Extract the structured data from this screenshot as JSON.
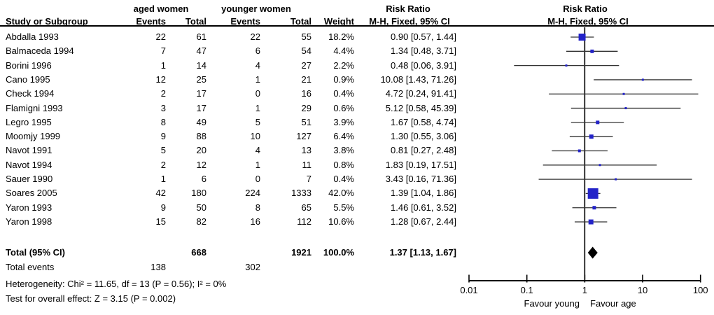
{
  "chart_data": {
    "type": "forest",
    "effect_measure": "Risk Ratio",
    "method": "M-H, Fixed, 95% CI",
    "groups": {
      "experimental": "aged women",
      "control": "younger women"
    },
    "columns": [
      "Study or Subgroup",
      "Events",
      "Total",
      "Events",
      "Total",
      "Weight"
    ],
    "studies": [
      {
        "name": "Abdalla 1993",
        "events1": 22,
        "total1": 61,
        "events2": 22,
        "total2": 55,
        "weight": "18.2%",
        "weight_value": 18.2,
        "rr": 0.9,
        "ci_low": 0.57,
        "ci_high": 1.44,
        "label": "0.90 [0.57, 1.44]"
      },
      {
        "name": "Balmaceda 1994",
        "events1": 7,
        "total1": 47,
        "events2": 6,
        "total2": 54,
        "weight": "4.4%",
        "weight_value": 4.4,
        "rr": 1.34,
        "ci_low": 0.48,
        "ci_high": 3.71,
        "label": "1.34 [0.48, 3.71]"
      },
      {
        "name": "Borini 1996",
        "events1": 1,
        "total1": 14,
        "events2": 4,
        "total2": 27,
        "weight": "2.2%",
        "weight_value": 2.2,
        "rr": 0.48,
        "ci_low": 0.06,
        "ci_high": 3.91,
        "label": "0.48 [0.06, 3.91]"
      },
      {
        "name": "Cano 1995",
        "events1": 12,
        "total1": 25,
        "events2": 1,
        "total2": 21,
        "weight": "0.9%",
        "weight_value": 0.9,
        "rr": 10.08,
        "ci_low": 1.43,
        "ci_high": 71.26,
        "label": "10.08 [1.43, 71.26]"
      },
      {
        "name": "Check 1994",
        "events1": 2,
        "total1": 17,
        "events2": 0,
        "total2": 16,
        "weight": "0.4%",
        "weight_value": 0.4,
        "rr": 4.72,
        "ci_low": 0.24,
        "ci_high": 91.41,
        "label": "4.72 [0.24, 91.41]"
      },
      {
        "name": "Flamigni 1993",
        "events1": 3,
        "total1": 17,
        "events2": 1,
        "total2": 29,
        "weight": "0.6%",
        "weight_value": 0.6,
        "rr": 5.12,
        "ci_low": 0.58,
        "ci_high": 45.39,
        "label": "5.12 [0.58, 45.39]"
      },
      {
        "name": "Legro 1995",
        "events1": 8,
        "total1": 49,
        "events2": 5,
        "total2": 51,
        "weight": "3.9%",
        "weight_value": 3.9,
        "rr": 1.67,
        "ci_low": 0.58,
        "ci_high": 4.74,
        "label": "1.67 [0.58, 4.74]"
      },
      {
        "name": "Moomjy 1999",
        "events1": 9,
        "total1": 88,
        "events2": 10,
        "total2": 127,
        "weight": "6.4%",
        "weight_value": 6.4,
        "rr": 1.3,
        "ci_low": 0.55,
        "ci_high": 3.06,
        "label": "1.30 [0.55, 3.06]"
      },
      {
        "name": "Navot 1991",
        "events1": 5,
        "total1": 20,
        "events2": 4,
        "total2": 13,
        "weight": "3.8%",
        "weight_value": 3.8,
        "rr": 0.81,
        "ci_low": 0.27,
        "ci_high": 2.48,
        "label": "0.81 [0.27, 2.48]"
      },
      {
        "name": "Navot 1994",
        "events1": 2,
        "total1": 12,
        "events2": 1,
        "total2": 11,
        "weight": "0.8%",
        "weight_value": 0.8,
        "rr": 1.83,
        "ci_low": 0.19,
        "ci_high": 17.51,
        "label": "1.83 [0.19, 17.51]"
      },
      {
        "name": "Sauer 1990",
        "events1": 1,
        "total1": 6,
        "events2": 0,
        "total2": 7,
        "weight": "0.4%",
        "weight_value": 0.4,
        "rr": 3.43,
        "ci_low": 0.16,
        "ci_high": 71.36,
        "label": "3.43 [0.16, 71.36]"
      },
      {
        "name": "Soares 2005",
        "events1": 42,
        "total1": 180,
        "events2": 224,
        "total2": 1333,
        "weight": "42.0%",
        "weight_value": 42.0,
        "rr": 1.39,
        "ci_low": 1.04,
        "ci_high": 1.86,
        "label": "1.39 [1.04, 1.86]"
      },
      {
        "name": "Yaron 1993",
        "events1": 9,
        "total1": 50,
        "events2": 8,
        "total2": 65,
        "weight": "5.5%",
        "weight_value": 5.5,
        "rr": 1.46,
        "ci_low": 0.61,
        "ci_high": 3.52,
        "label": "1.46 [0.61, 3.52]"
      },
      {
        "name": "Yaron 1998",
        "events1": 15,
        "total1": 82,
        "events2": 16,
        "total2": 112,
        "weight": "10.6%",
        "weight_value": 10.6,
        "rr": 1.28,
        "ci_low": 0.67,
        "ci_high": 2.44,
        "label": "1.28 [0.67, 2.44]"
      }
    ],
    "total": {
      "name": "Total (95% CI)",
      "total1": 668,
      "total2": 1921,
      "weight": "100.0%",
      "rr": 1.37,
      "ci_low": 1.13,
      "ci_high": 1.67,
      "label": "1.37 [1.13, 1.67]"
    },
    "total_events": {
      "name": "Total events",
      "events1": 138,
      "events2": 302
    },
    "heterogeneity": "Heterogeneity: Chi² = 11.65, df = 13 (P = 0.56); I² = 0%",
    "overall_effect": "Test for overall effect: Z = 3.15 (P = 0.002)",
    "axis": {
      "scale": "log",
      "xlim": [
        0.01,
        100
      ],
      "ticks": [
        0.01,
        0.1,
        1,
        10,
        100
      ],
      "tick_labels": [
        "0.01",
        "0.1",
        "1",
        "10",
        "100"
      ],
      "favour_left": "Favour young",
      "favour_right": "Favour age"
    },
    "colors": {
      "square": "#2323C8",
      "diamond": "#000000",
      "line": "#000000",
      "ci_line": "#333333"
    }
  }
}
